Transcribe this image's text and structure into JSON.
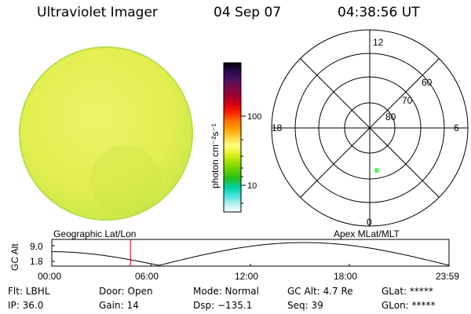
{
  "header": {
    "title": "Ultraviolet Imager",
    "date": "04 Sep 07",
    "time": "04:38:56 UT"
  },
  "colorbar": {
    "unit_label": "photon cm⁻²s⁻¹",
    "tick_100": "100",
    "tick_10": "10",
    "colors": [
      "#000000",
      "#2a0a4a",
      "#4b1060",
      "#7a0a4a",
      "#a00030",
      "#d40010",
      "#ff2000",
      "#ff7000",
      "#ffa000",
      "#ffd040",
      "#ffff80",
      "#e0f020",
      "#a0e000",
      "#60d000",
      "#20c020",
      "#00d0a0",
      "#40e0e0",
      "#b0f0f0",
      "#ffffff"
    ]
  },
  "polar_plot": {
    "lat_labels": [
      "60",
      "70",
      "80"
    ],
    "mlt_labels": {
      "top": "12",
      "bottom": "0",
      "left": "18",
      "right": "6"
    },
    "point_color": "#66ee66"
  },
  "image_disk": {
    "base_color": "#e8f050",
    "edge_color": "#b8e040"
  },
  "timeline": {
    "left_label": "Geographic Lat/Lon",
    "right_label": "Apex  MLat/MLT",
    "y_axis_label": "GC Alt",
    "y_ticks": [
      "9.0",
      "1.8"
    ],
    "x_ticks": [
      "00:00",
      "06:00",
      "12:00",
      "18:00",
      "23:59"
    ],
    "current_time_fraction": 0.198,
    "marker_color": "#cc0000"
  },
  "info": {
    "flt": "Flt: LBHL",
    "door": "Door: Open",
    "mode": "Mode: Normal",
    "gcalt": "GC Alt: 4.7 Re",
    "glat": "GLat: *****",
    "ip": "IP: 36.0",
    "gain": "Gain: 14",
    "dsp": "Dsp: −135.1",
    "seq": "Seq: 39",
    "glon": "GLon: *****"
  }
}
